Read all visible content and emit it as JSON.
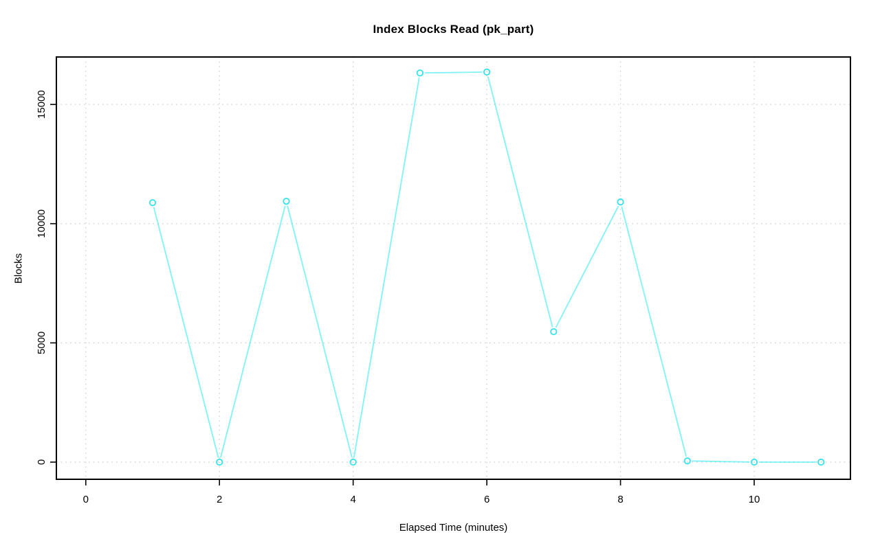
{
  "chart_data": {
    "type": "line",
    "title": "Index Blocks Read (pk_part)",
    "xlabel": "Elapsed Time (minutes)",
    "ylabel": "Blocks",
    "x": [
      1,
      2,
      3,
      4,
      5,
      6,
      7,
      8,
      9,
      10,
      11
    ],
    "y": [
      10880,
      0,
      10940,
      0,
      16320,
      16360,
      5470,
      10910,
      50,
      0,
      0
    ],
    "xticks": [
      0,
      2,
      4,
      6,
      8,
      10
    ],
    "yticks": [
      0,
      5000,
      10000,
      15000
    ],
    "xlim": [
      -0.44,
      11.44
    ],
    "ylim": [
      -720,
      16990
    ],
    "grid": "dotted gridlines at every axis tick, horizontal and vertical",
    "legend": "none",
    "marker": "open-circle",
    "line_style": "points joined by segments with gaps at markers (R type='b')",
    "series_color": "#00E8F0",
    "marker_color": "#00DCE6",
    "grid_color": "#C9C9C9",
    "axis_color": "#000000",
    "background_color": "#FFFFFF"
  }
}
